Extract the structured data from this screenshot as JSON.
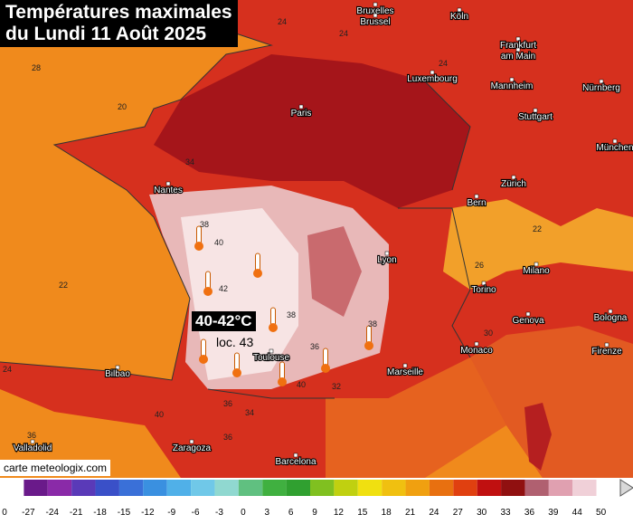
{
  "title": {
    "line1": "Températures maximales",
    "line2": "du Lundi 11 Août 2025"
  },
  "highlight": {
    "range": "40-42°C",
    "local": "loc. 43"
  },
  "cities": [
    "Bruxelles",
    "Brussel",
    "Köln",
    "Frankfurt",
    "am Main",
    "Luxembourg",
    "Mannheim",
    "Nürnberg",
    "Stuttgart",
    "Paris",
    "München",
    "Nantes",
    "Zürich",
    "Bern",
    "Lyon",
    "Milano",
    "Torino",
    "Genova",
    "Bologna",
    "Monaco",
    "Marseille",
    "Toulouse",
    "Bilbao",
    "Firenze",
    "Valladolid",
    "Zaragoza",
    "Barcelona"
  ],
  "isotherm_labels": [
    24,
    20,
    28,
    22,
    24,
    34,
    38,
    40,
    42,
    38,
    36,
    38,
    40,
    32,
    36,
    34,
    40,
    36,
    36,
    24,
    26,
    22,
    30,
    24
  ],
  "credit": "carte meteologix.com",
  "scale_ticks": [
    0,
    -27,
    -24,
    -21,
    -18,
    -15,
    -12,
    -9,
    -6,
    -3,
    0,
    3,
    6,
    9,
    12,
    15,
    18,
    21,
    24,
    27,
    30,
    33,
    36,
    39,
    44,
    50
  ]
}
